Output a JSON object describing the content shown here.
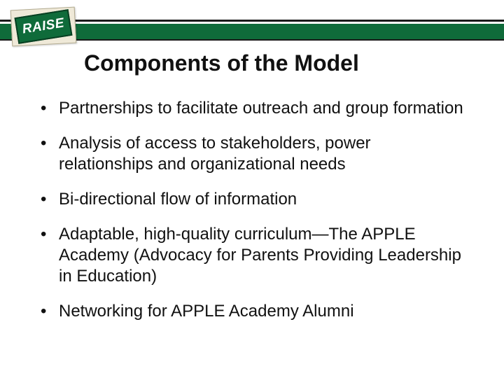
{
  "logo": {
    "text": "RAISE"
  },
  "header": {
    "bar_color": "#0f6b3a",
    "line_color": "#1a1a1a"
  },
  "title": "Components of the Model",
  "title_fontsize": 32,
  "bullet_fontsize": 24,
  "bullets": [
    "Partnerships to facilitate outreach and group formation",
    "Analysis of access to stakeholders, power relationships and organizational needs",
    "Bi-directional flow of information",
    "Adaptable, high-quality curriculum—The APPLE Academy (Advocacy for Parents Providing Leadership in Education)",
    "Networking for APPLE Academy Alumni"
  ],
  "background_color": "#ffffff",
  "text_color": "#111111"
}
